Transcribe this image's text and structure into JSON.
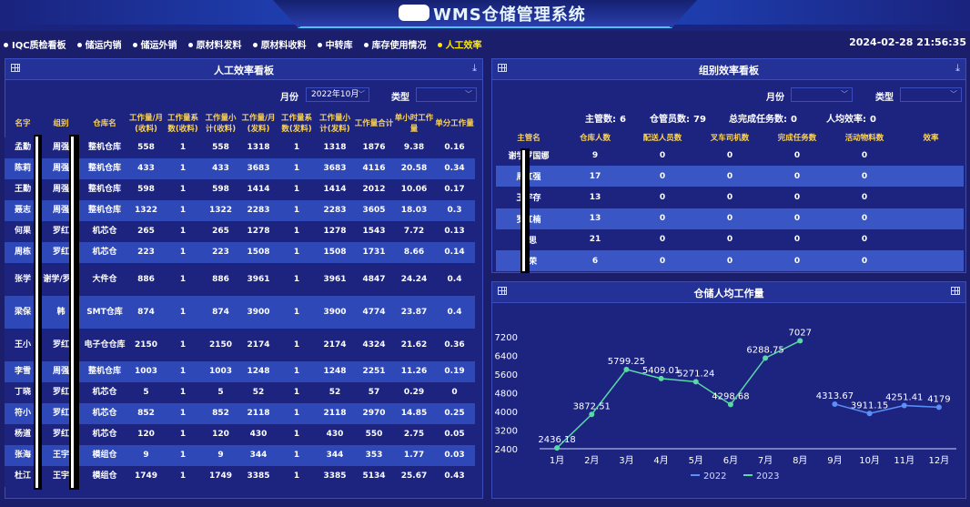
{
  "app_title": "WMS仓储管理系统",
  "datetime": "2024-02-28 21:56:35",
  "nav": [
    {
      "label": "IQC质检看板",
      "active": false
    },
    {
      "label": "储运内销",
      "active": false
    },
    {
      "label": "储运外销",
      "active": false
    },
    {
      "label": "原材料发料",
      "active": false
    },
    {
      "label": "原材料收料",
      "active": false
    },
    {
      "label": "中转库",
      "active": false
    },
    {
      "label": "库存使用情况",
      "active": false
    },
    {
      "label": "人工效率",
      "active": true
    }
  ],
  "panel_left": {
    "title": "人工效率看板",
    "filter_month_label": "月份",
    "filter_month_value": "2022年10月",
    "filter_type_label": "类型",
    "filter_type_value": "",
    "columns": [
      "名字",
      "组别",
      "仓库名",
      "工作量/月(收料)",
      "工作量系数(收料)",
      "工作量小计(收料)",
      "工作量/月(发料)",
      "工作量系数(发料)",
      "工作量小计(发料)",
      "工作量合计",
      "单小时工作量",
      "单分工作量"
    ],
    "rows": [
      [
        "孟勤",
        "周强",
        "整机仓库",
        "558",
        "1",
        "558",
        "1318",
        "1",
        "1318",
        "1876",
        "9.38",
        "0.16"
      ],
      [
        "陈莉",
        "周强",
        "整机仓库",
        "433",
        "1",
        "433",
        "3683",
        "1",
        "3683",
        "4116",
        "20.58",
        "0.34"
      ],
      [
        "王勤",
        "周强",
        "整机仓库",
        "598",
        "1",
        "598",
        "1414",
        "1",
        "1414",
        "2012",
        "10.06",
        "0.17"
      ],
      [
        "聂志",
        "周强",
        "整机仓库",
        "1322",
        "1",
        "1322",
        "2283",
        "1",
        "2283",
        "3605",
        "18.03",
        "0.3"
      ],
      [
        "何果",
        "罗红",
        "机芯仓",
        "265",
        "1",
        "265",
        "1278",
        "1",
        "1278",
        "1543",
        "7.72",
        "0.13"
      ],
      [
        "周栋",
        "罗红",
        "机芯仓",
        "223",
        "1",
        "223",
        "1508",
        "1",
        "1508",
        "1731",
        "8.66",
        "0.14"
      ],
      [
        "张学",
        "谢学/罗红",
        "大件仓",
        "886",
        "1",
        "886",
        "3961",
        "1",
        "3961",
        "4847",
        "24.24",
        "0.4"
      ],
      [
        "梁保",
        "韩",
        "SMT仓库",
        "874",
        "1",
        "874",
        "3900",
        "1",
        "3900",
        "4774",
        "23.87",
        "0.4"
      ],
      [
        "王小",
        "罗红",
        "电子仓仓库",
        "2150",
        "1",
        "2150",
        "2174",
        "1",
        "2174",
        "4324",
        "21.62",
        "0.36"
      ],
      [
        "李雪",
        "周强",
        "整机仓库",
        "1003",
        "1",
        "1003",
        "1248",
        "1",
        "1248",
        "2251",
        "11.26",
        "0.19"
      ],
      [
        "丁晓",
        "罗红",
        "机芯仓",
        "5",
        "1",
        "5",
        "52",
        "1",
        "52",
        "57",
        "0.29",
        "0"
      ],
      [
        "符小",
        "罗红",
        "机芯仓",
        "852",
        "1",
        "852",
        "2118",
        "1",
        "2118",
        "2970",
        "14.85",
        "0.25"
      ],
      [
        "杨道",
        "罗红",
        "机芯仓",
        "120",
        "1",
        "120",
        "430",
        "1",
        "430",
        "550",
        "2.75",
        "0.05"
      ],
      [
        "张海",
        "王宇",
        "模组仓",
        "9",
        "1",
        "9",
        "344",
        "1",
        "344",
        "353",
        "1.77",
        "0.03"
      ],
      [
        "杜江",
        "王宇",
        "模组仓",
        "1749",
        "1",
        "1749",
        "3385",
        "1",
        "3385",
        "5134",
        "25.67",
        "0.43"
      ]
    ]
  },
  "panel_group": {
    "title": "组别效率看板",
    "filter_month_label": "月份",
    "filter_month_value": "",
    "filter_type_label": "类型",
    "filter_type_value": "",
    "stats": [
      {
        "label": "主管数:",
        "value": "6"
      },
      {
        "label": "仓管员数:",
        "value": "79"
      },
      {
        "label": "总完成任务数:",
        "value": "0"
      },
      {
        "label": "人均效率:",
        "value": "0"
      }
    ],
    "columns": [
      "主管名",
      "仓库人数",
      "配送人员数",
      "叉车司机数",
      "完成任务数",
      "活动物料数",
      "效率"
    ],
    "rows": [
      [
        "谢学罗国娜",
        "9",
        "0",
        "0",
        "0",
        "0",
        ""
      ],
      [
        "周红强",
        "17",
        "0",
        "0",
        "0",
        "0",
        ""
      ],
      [
        "王宇存",
        "13",
        "0",
        "0",
        "0",
        "0",
        ""
      ],
      [
        "罗红楠",
        "13",
        "0",
        "0",
        "0",
        "0",
        ""
      ],
      [
        "刘思",
        "21",
        "0",
        "0",
        "0",
        "0",
        ""
      ],
      [
        "邹荣",
        "6",
        "0",
        "0",
        "0",
        "0",
        ""
      ]
    ]
  },
  "panel_chart": {
    "title": "仓储人均工作量"
  },
  "chart_data": {
    "type": "line",
    "categories": [
      "1月",
      "2月",
      "3月",
      "4月",
      "5月",
      "6月",
      "7月",
      "8月",
      "9月",
      "10月",
      "11月",
      "12月"
    ],
    "series": [
      {
        "name": "2022",
        "color": "#5b8ff9",
        "values": [
          null,
          null,
          null,
          null,
          null,
          null,
          null,
          null,
          4313.67,
          3911.15,
          4251.41,
          4179
        ]
      },
      {
        "name": "2023",
        "color": "#5ad8a6",
        "values": [
          2436.18,
          3872.51,
          5799.25,
          5409.01,
          5271.24,
          4298.68,
          6288.75,
          7027,
          null,
          null,
          null,
          null
        ]
      }
    ],
    "yticks": [
      2400,
      3200,
      4000,
      4800,
      5600,
      6400,
      7200
    ],
    "ylim": [
      2400,
      7200
    ],
    "legend_position": "bottom-center",
    "grid": false
  }
}
